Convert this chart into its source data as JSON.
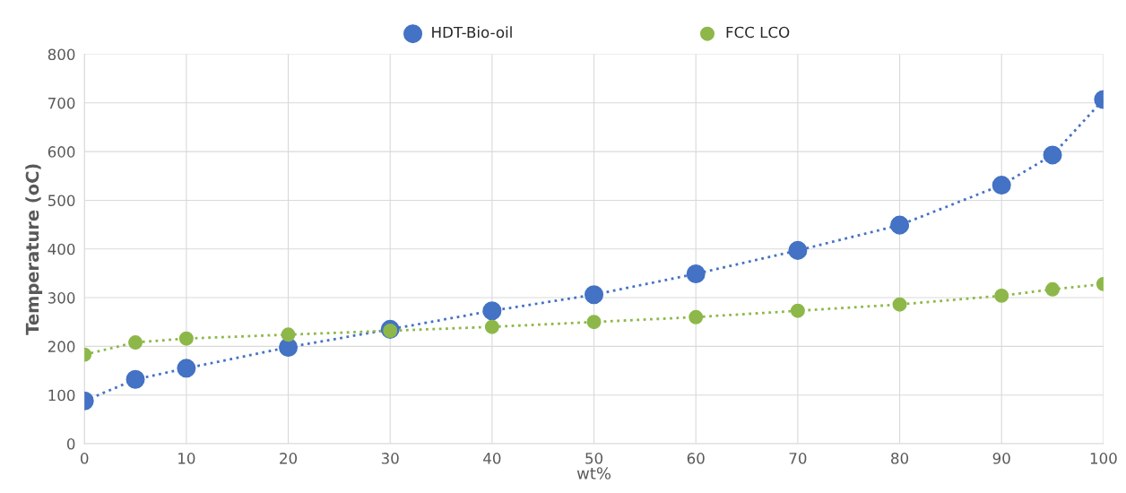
{
  "chart_data": {
    "type": "line",
    "xlabel": "wt%",
    "ylabel": "Temperature (oC)",
    "x": [
      0,
      5,
      10,
      20,
      30,
      40,
      50,
      60,
      70,
      80,
      90,
      95,
      100
    ],
    "series": [
      {
        "name": "HDT-Bio-oil",
        "color": "#4472c4",
        "values": [
          88,
          132,
          155,
          198,
          235,
          273,
          306,
          349,
          397,
          449,
          531,
          593,
          707
        ]
      },
      {
        "name": "FCC LCO",
        "color": "#8db849",
        "values": [
          183,
          208,
          216,
          224,
          232,
          240,
          250,
          260,
          273,
          286,
          304,
          317,
          328
        ]
      }
    ],
    "xlim": [
      0,
      100
    ],
    "xticks": [
      0,
      10,
      20,
      30,
      40,
      50,
      60,
      70,
      80,
      90,
      100
    ],
    "ylim": [
      0,
      800
    ],
    "yticks": [
      0,
      100,
      200,
      300,
      400,
      500,
      600,
      700,
      800
    ],
    "grid": true,
    "legend": "top",
    "marker": "circle",
    "line_style": "dotted"
  }
}
